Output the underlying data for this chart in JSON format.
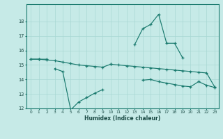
{
  "xlabel": "Humidex (Indice chaleur)",
  "bg_color": "#c6eae7",
  "grid_color": "#a8d8d4",
  "line_color": "#1a7a6e",
  "x": [
    0,
    1,
    2,
    3,
    4,
    5,
    6,
    7,
    8,
    9,
    10,
    11,
    12,
    13,
    14,
    15,
    16,
    17,
    18,
    19,
    20,
    21,
    22,
    23
  ],
  "line_top": [
    15.4,
    15.4,
    15.4,
    null,
    null,
    null,
    null,
    null,
    null,
    null,
    15.05,
    null,
    null,
    16.4,
    17.5,
    17.8,
    18.5,
    16.5,
    16.5,
    15.5,
    null,
    null,
    null,
    null
  ],
  "line_mid": [
    15.4,
    15.4,
    15.35,
    15.3,
    15.2,
    15.1,
    15.0,
    14.95,
    14.9,
    14.85,
    15.05,
    15.0,
    14.95,
    14.9,
    14.85,
    14.8,
    14.75,
    14.7,
    14.65,
    14.6,
    14.55,
    14.5,
    14.45,
    13.5
  ],
  "line_bot_left": [
    null,
    null,
    null,
    14.75,
    14.55,
    11.9,
    12.45,
    12.75,
    13.05,
    13.3,
    null,
    null,
    null,
    null,
    null,
    null,
    null,
    null,
    null,
    null,
    null,
    null,
    null,
    null
  ],
  "line_bot_right": [
    null,
    null,
    null,
    null,
    null,
    null,
    null,
    null,
    null,
    null,
    null,
    null,
    null,
    null,
    13.95,
    14.0,
    13.85,
    13.75,
    13.65,
    13.55,
    13.5,
    13.85,
    13.6,
    13.45
  ],
  "ylim": [
    12,
    19
  ],
  "xlim_lo": -0.5,
  "xlim_hi": 23.5,
  "yticks": [
    12,
    13,
    14,
    15,
    16,
    17,
    18
  ],
  "xticks": [
    0,
    1,
    2,
    3,
    4,
    5,
    6,
    7,
    8,
    9,
    10,
    11,
    12,
    13,
    14,
    15,
    16,
    17,
    18,
    19,
    20,
    21,
    22,
    23
  ]
}
